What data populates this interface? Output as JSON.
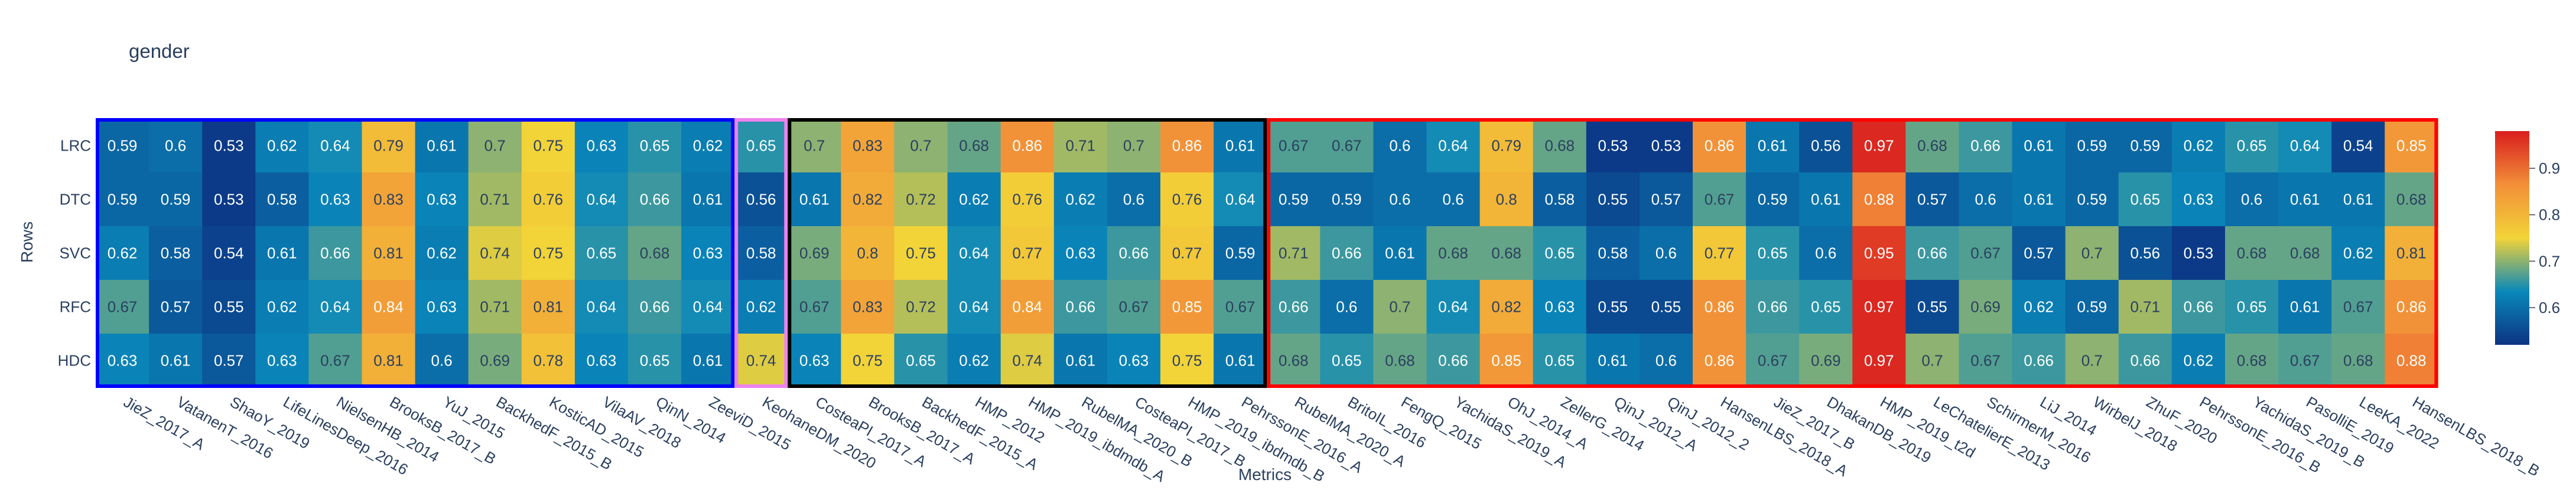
{
  "chart_data": {
    "type": "heatmap",
    "title": "gender",
    "xlabel": "Metrics",
    "ylabel": "Rows",
    "rows": [
      "LRC",
      "DTC",
      "SVC",
      "RFC",
      "HDC"
    ],
    "columns": [
      "JieZ_2017_A",
      "VatanenT_2016",
      "ShaoY_2019",
      "LifeLinesDeep_2016",
      "NielsenHB_2014",
      "BrooksB_2017_B",
      "YuJ_2015",
      "BackhedF_2015_B",
      "KosticAD_2015",
      "VilaAV_2018",
      "QinN_2014",
      "ZeeviD_2015",
      "KeohaneDM_2020",
      "CosteaPI_2017_A",
      "BrooksB_2017_A",
      "BackhedF_2015_A",
      "HMP_2012",
      "HMP_2019_ibdmdb_A",
      "RubelMA_2020_B",
      "CosteaPI_2017_B",
      "HMP_2019_ibdmdb_B",
      "PehrssonE_2016_A",
      "RubelMA_2020_A",
      "BritoIL_2016",
      "FengQ_2015",
      "YachidaS_2019_A",
      "OhJ_2014_A",
      "ZellerG_2014",
      "QinJ_2012_A",
      "QinJ_2012_2",
      "HansenLBS_2018_A",
      "JieZ_2017_B",
      "DhakanDB_2019",
      "HMP_2019_t2d",
      "LeChatelierE_2013",
      "SchirmerM_2016",
      "LiJ_2014",
      "WirbelJ_2018",
      "ZhuF_2020",
      "PehrssonE_2016_B",
      "YachidaS_2019_B",
      "PasolliE_2019",
      "LeeKA_2022",
      "HansenLBS_2018_B"
    ],
    "values": [
      [
        0.59,
        0.6,
        0.53,
        0.62,
        0.64,
        0.79,
        0.61,
        0.7,
        0.75,
        0.63,
        0.65,
        0.62,
        0.65,
        0.7,
        0.83,
        0.7,
        0.68,
        0.86,
        0.71,
        0.7,
        0.86,
        0.61,
        0.67,
        0.67,
        0.6,
        0.64,
        0.79,
        0.68,
        0.53,
        0.53,
        0.86,
        0.61,
        0.56,
        0.97,
        0.68,
        0.66,
        0.61,
        0.59,
        0.59,
        0.62,
        0.65,
        0.64,
        0.54,
        0.85
      ],
      [
        0.59,
        0.59,
        0.53,
        0.58,
        0.63,
        0.83,
        0.63,
        0.71,
        0.76,
        0.64,
        0.66,
        0.61,
        0.56,
        0.61,
        0.82,
        0.72,
        0.62,
        0.76,
        0.62,
        0.6,
        0.76,
        0.64,
        0.59,
        0.59,
        0.6,
        0.6,
        0.8,
        0.58,
        0.55,
        0.57,
        0.67,
        0.59,
        0.61,
        0.88,
        0.57,
        0.6,
        0.61,
        0.59,
        0.65,
        0.63,
        0.6,
        0.61,
        0.61,
        0.68
      ],
      [
        0.62,
        0.58,
        0.54,
        0.61,
        0.66,
        0.81,
        0.62,
        0.74,
        0.75,
        0.65,
        0.68,
        0.63,
        0.58,
        0.69,
        0.8,
        0.75,
        0.64,
        0.77,
        0.63,
        0.66,
        0.77,
        0.59,
        0.71,
        0.66,
        0.61,
        0.68,
        0.68,
        0.65,
        0.58,
        0.6,
        0.77,
        0.65,
        0.6,
        0.95,
        0.66,
        0.67,
        0.57,
        0.7,
        0.56,
        0.53,
        0.68,
        0.68,
        0.62,
        0.81
      ],
      [
        0.67,
        0.57,
        0.55,
        0.62,
        0.64,
        0.84,
        0.63,
        0.71,
        0.81,
        0.64,
        0.66,
        0.64,
        0.62,
        0.67,
        0.83,
        0.72,
        0.64,
        0.84,
        0.66,
        0.67,
        0.85,
        0.67,
        0.66,
        0.6,
        0.7,
        0.64,
        0.82,
        0.63,
        0.55,
        0.55,
        0.86,
        0.66,
        0.65,
        0.97,
        0.55,
        0.69,
        0.62,
        0.59,
        0.71,
        0.66,
        0.65,
        0.61,
        0.67,
        0.86
      ],
      [
        0.63,
        0.61,
        0.57,
        0.63,
        0.67,
        0.81,
        0.6,
        0.69,
        0.78,
        0.63,
        0.65,
        0.61,
        0.74,
        0.63,
        0.75,
        0.65,
        0.62,
        0.74,
        0.61,
        0.63,
        0.75,
        0.61,
        0.68,
        0.65,
        0.68,
        0.66,
        0.85,
        0.65,
        0.61,
        0.6,
        0.86,
        0.67,
        0.69,
        0.97,
        0.7,
        0.67,
        0.66,
        0.7,
        0.66,
        0.62,
        0.68,
        0.67,
        0.68,
        0.88
      ]
    ],
    "zlim": [
      0.52,
      0.98
    ],
    "colorscale": "Portland",
    "colorbar_ticks": [
      0.6,
      0.7,
      0.8,
      0.9
    ],
    "groups": [
      {
        "start": 0,
        "end": 11,
        "color": "#0000ff"
      },
      {
        "start": 12,
        "end": 12,
        "color": "#ee82ee"
      },
      {
        "start": 13,
        "end": 21,
        "color": "#000000"
      },
      {
        "start": 22,
        "end": 43,
        "color": "#ff0000"
      }
    ]
  }
}
